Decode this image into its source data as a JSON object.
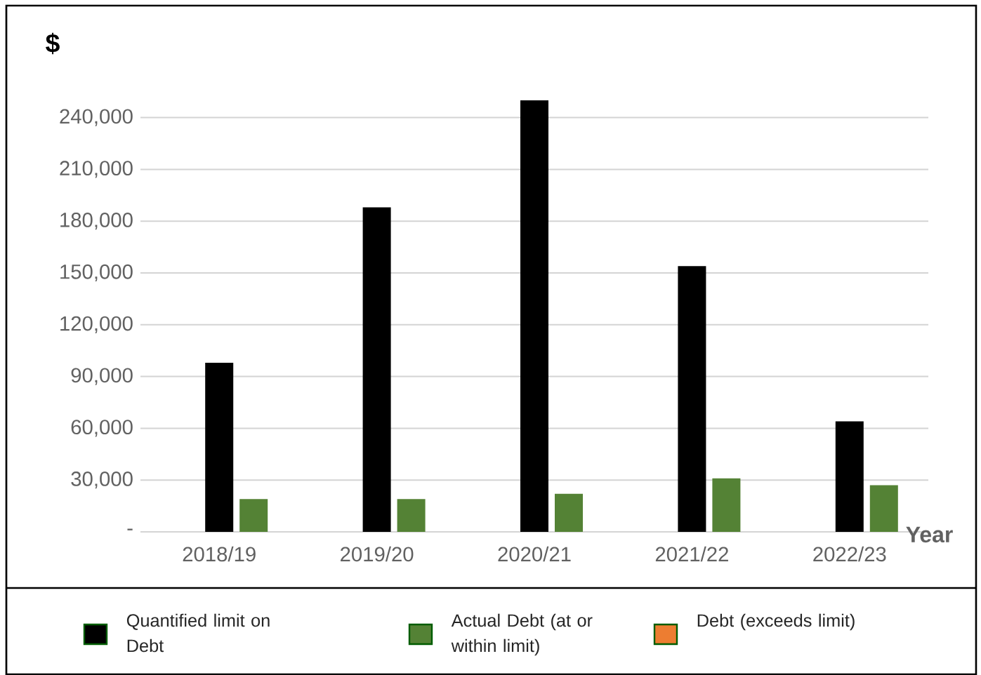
{
  "chart_data": {
    "type": "bar",
    "annotations": [
      "$",
      "Year"
    ],
    "categories": [
      "2018/19",
      "2019/20",
      "2020/21",
      "2021/22",
      "2022/23"
    ],
    "series": [
      {
        "name": "Quantified limit on Debt",
        "color": "#000000",
        "values": [
          98000,
          188000,
          250000,
          154000,
          64000
        ]
      },
      {
        "name": "Actual Debt (at or within limit)",
        "color": "#548235",
        "values": [
          19000,
          19000,
          22000,
          31000,
          27000
        ]
      },
      {
        "name": "Debt (exceeds limit)",
        "color": "#ed7d31",
        "values": [
          null,
          null,
          null,
          null,
          null
        ]
      }
    ],
    "yticks": [
      {
        "value": 0,
        "label": "-"
      },
      {
        "value": 30000,
        "label": "30,000"
      },
      {
        "value": 60000,
        "label": "60,000"
      },
      {
        "value": 90000,
        "label": "90,000"
      },
      {
        "value": 120000,
        "label": "120,000"
      },
      {
        "value": 150000,
        "label": "150,000"
      },
      {
        "value": 180000,
        "label": "180,000"
      },
      {
        "value": 210000,
        "label": "210,000"
      },
      {
        "value": 240000,
        "label": "240,000"
      }
    ],
    "ylim": [
      0,
      250000
    ],
    "grid": "y",
    "legend": "bottom"
  }
}
